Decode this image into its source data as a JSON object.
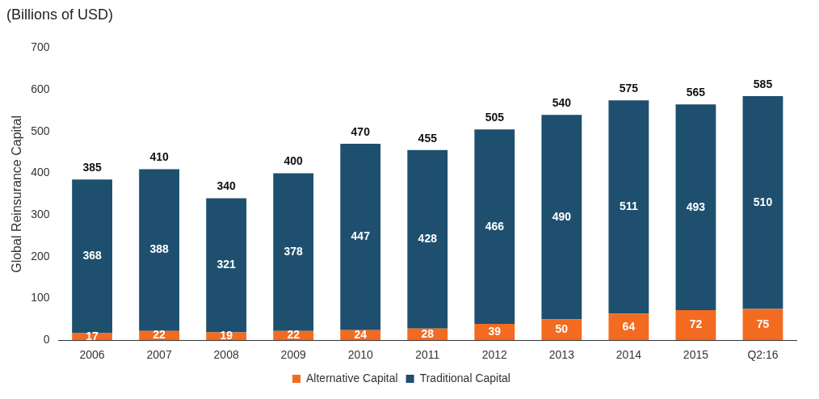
{
  "chart_data": {
    "type": "bar",
    "title": "(Billions of USD)",
    "ylabel": "Global Reinsurance Capital",
    "categories": [
      "2006",
      "2007",
      "2008",
      "2009",
      "2010",
      "2011",
      "2012",
      "2013",
      "2014",
      "2015",
      "Q2:16"
    ],
    "series": [
      {
        "name": "Alternative Capital",
        "color": "#f26b21",
        "values": [
          17,
          22,
          19,
          22,
          24,
          28,
          39,
          50,
          64,
          72,
          75
        ]
      },
      {
        "name": "Traditional Capital",
        "color": "#1e4f6e",
        "values": [
          368,
          388,
          321,
          378,
          447,
          428,
          466,
          490,
          511,
          493,
          510
        ]
      }
    ],
    "stacked": true,
    "data_labels": true,
    "totals": [
      "385",
      "410",
      "340",
      "400",
      "470",
      "455",
      "505",
      "540",
      "575",
      "565",
      "585"
    ],
    "ylim": [
      0,
      700
    ],
    "yticks": [
      0,
      100,
      200,
      300,
      400,
      500,
      600,
      700
    ],
    "grid": false,
    "legend": "bottom"
  }
}
